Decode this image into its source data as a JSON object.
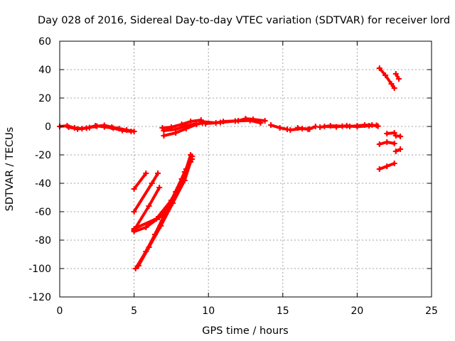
{
  "chart_data": {
    "type": "scatter",
    "title": "Day 028 of 2016, Sidereal Day-to-day VTEC variation (SDTVAR) for receiver lord",
    "xlabel": "GPS time / hours",
    "ylabel": "SDTVAR / TECUs",
    "xlim": [
      0,
      25
    ],
    "ylim": [
      -120,
      60
    ],
    "x_ticks": [
      "0",
      "5",
      "10",
      "15",
      "20",
      "25"
    ],
    "y_ticks": [
      "60",
      "40",
      "20",
      "0",
      "-20",
      "-40",
      "-60",
      "-80",
      "-100",
      "-120"
    ],
    "grid": true,
    "legend": "none",
    "series_color": "#ff0000",
    "series": [
      {
        "points": [
          [
            0.0,
            0.0
          ],
          [
            0.5,
            0.5
          ],
          [
            1.0,
            -1.0
          ],
          [
            1.5,
            -1.5
          ],
          [
            2.0,
            -0.8
          ],
          [
            2.5,
            0.2
          ],
          [
            3.0,
            0.8
          ],
          [
            3.5,
            -0.5
          ],
          [
            4.0,
            -1.5
          ],
          [
            4.5,
            -2.5
          ],
          [
            5.0,
            -3.5
          ]
        ]
      },
      {
        "points": [
          [
            0.6,
            -0.5
          ],
          [
            1.2,
            -1.8
          ],
          [
            1.8,
            -1.2
          ],
          [
            2.4,
            0.5
          ],
          [
            3.0,
            -0.3
          ],
          [
            3.6,
            -1.2
          ],
          [
            4.2,
            -2.8
          ],
          [
            4.8,
            -3.5
          ]
        ]
      },
      {
        "points": [
          [
            5.0,
            -44
          ],
          [
            5.8,
            -33
          ]
        ]
      },
      {
        "points": [
          [
            5.0,
            -60
          ],
          [
            6.2,
            -40
          ],
          [
            6.6,
            -33
          ]
        ]
      },
      {
        "points": [
          [
            5.0,
            -73
          ],
          [
            6.0,
            -56
          ],
          [
            6.7,
            -43
          ]
        ]
      },
      {
        "points": [
          [
            5.1,
            -100
          ],
          [
            5.8,
            -88
          ],
          [
            6.4,
            -76
          ],
          [
            7.0,
            -63
          ],
          [
            7.8,
            -46
          ],
          [
            8.4,
            -32
          ],
          [
            8.9,
            -21
          ]
        ]
      },
      {
        "points": [
          [
            5.0,
            -72
          ],
          [
            6.5,
            -65
          ],
          [
            7.5,
            -52
          ],
          [
            8.2,
            -37
          ],
          [
            8.9,
            -23
          ]
        ]
      },
      {
        "points": [
          [
            5.3,
            -98
          ],
          [
            6.0,
            -85
          ],
          [
            6.8,
            -70
          ],
          [
            7.6,
            -54
          ],
          [
            8.4,
            -38
          ],
          [
            8.8,
            -25
          ]
        ]
      },
      {
        "points": [
          [
            5.0,
            -74
          ],
          [
            5.8,
            -71
          ],
          [
            6.7,
            -64
          ],
          [
            7.2,
            -57
          ],
          [
            8.0,
            -43
          ],
          [
            8.5,
            -30
          ],
          [
            8.8,
            -20
          ]
        ]
      },
      {
        "points": [
          [
            6.9,
            -1.0
          ],
          [
            7.5,
            -0.5
          ],
          [
            8.2,
            1.5
          ],
          [
            8.8,
            3.5
          ],
          [
            9.5,
            4.5
          ]
        ]
      },
      {
        "points": [
          [
            7.0,
            -3.0
          ],
          [
            7.8,
            -2.0
          ],
          [
            8.5,
            0.5
          ],
          [
            9.2,
            2.0
          ]
        ]
      },
      {
        "points": [
          [
            7.0,
            -6.5
          ],
          [
            7.8,
            -4.5
          ],
          [
            8.5,
            -1.5
          ],
          [
            9.2,
            1.5
          ],
          [
            9.6,
            2.5
          ]
        ]
      },
      {
        "points": [
          [
            9.5,
            3.5
          ],
          [
            10.5,
            2.5
          ],
          [
            11.0,
            3.5
          ],
          [
            12.0,
            4.0
          ],
          [
            12.5,
            5.5
          ],
          [
            13.0,
            5.0
          ],
          [
            13.8,
            4.0
          ]
        ]
      },
      {
        "points": [
          [
            9.8,
            2.0
          ],
          [
            10.8,
            2.8
          ],
          [
            11.8,
            3.8
          ],
          [
            12.8,
            4.2
          ],
          [
            13.5,
            2.5
          ]
        ]
      },
      {
        "points": [
          [
            14.2,
            1.0
          ],
          [
            14.8,
            -1.0
          ],
          [
            15.3,
            -2.0
          ]
        ]
      },
      {
        "points": [
          [
            15.5,
            -2.5
          ],
          [
            16.3,
            -1.5
          ],
          [
            16.8,
            -1.8
          ],
          [
            17.2,
            0.0
          ]
        ]
      },
      {
        "points": [
          [
            16.0,
            -1.0
          ],
          [
            16.7,
            -2.0
          ]
        ]
      },
      {
        "points": [
          [
            17.5,
            -0.5
          ],
          [
            18.2,
            0.5
          ],
          [
            19.0,
            0.2
          ],
          [
            19.5,
            0.0
          ],
          [
            20.0,
            0.5
          ],
          [
            20.5,
            1.0
          ],
          [
            21.0,
            1.0
          ],
          [
            21.4,
            0.2
          ]
        ]
      },
      {
        "points": [
          [
            17.8,
            0.0
          ],
          [
            18.6,
            -0.3
          ],
          [
            19.3,
            0.5
          ],
          [
            20.0,
            -0.2
          ],
          [
            20.8,
            0.5
          ],
          [
            21.3,
            0.8
          ]
        ]
      },
      {
        "points": [
          [
            21.5,
            41.0
          ],
          [
            21.9,
            36.0
          ],
          [
            22.3,
            30.0
          ],
          [
            22.5,
            27.0
          ]
        ]
      },
      {
        "points": [
          [
            22.6,
            37.0
          ],
          [
            22.8,
            33.5
          ]
        ]
      },
      {
        "points": [
          [
            21.5,
            -12.5
          ],
          [
            22.0,
            -11.0
          ],
          [
            22.5,
            -12.0
          ]
        ]
      },
      {
        "points": [
          [
            22.0,
            -5.0
          ],
          [
            22.5,
            -4.5
          ]
        ]
      },
      {
        "points": [
          [
            22.6,
            -6.5
          ],
          [
            22.9,
            -7.0
          ]
        ]
      },
      {
        "points": [
          [
            22.6,
            -17.5
          ],
          [
            22.9,
            -16.0
          ]
        ]
      },
      {
        "points": [
          [
            21.5,
            -30.0
          ],
          [
            22.0,
            -28.0
          ],
          [
            22.5,
            -26.0
          ]
        ]
      }
    ]
  }
}
